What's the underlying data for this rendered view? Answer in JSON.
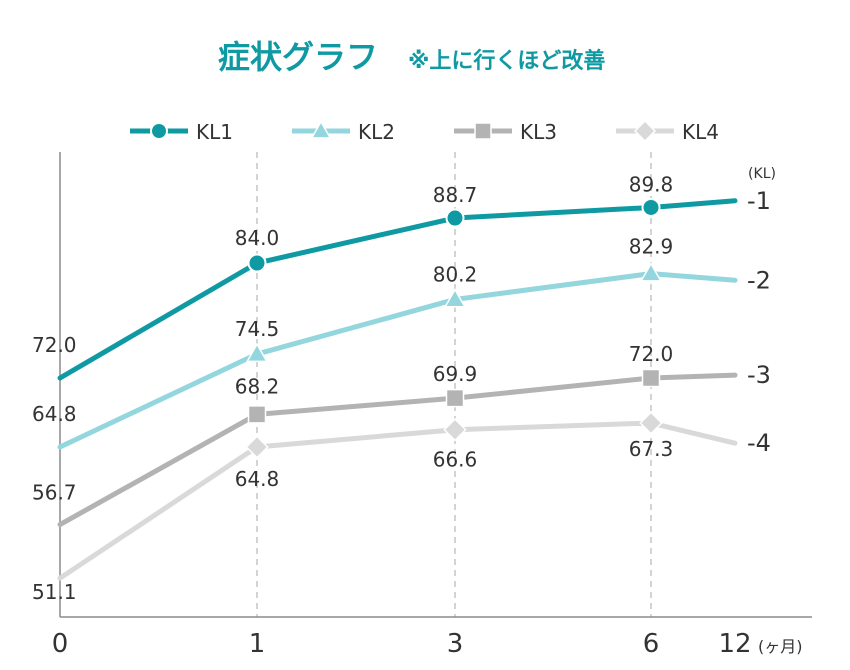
{
  "title": "症状グラフ",
  "subtitle": "※上に行くほど改善",
  "colors": {
    "kl1": "#0f9aa3",
    "kl2": "#94d6de",
    "kl3": "#b3b3b3",
    "kl4": "#d9d9d9",
    "axis": "#8c8c8c",
    "text": "#333333",
    "grid": "#c6c6c6"
  },
  "chart_data": {
    "type": "line",
    "title": "症状グラフ",
    "subtitle": "※上に行くほど改善",
    "x": [
      0,
      1,
      3,
      6,
      12
    ],
    "x_tick_labels": [
      "0",
      "1",
      "3",
      "6",
      "12"
    ],
    "x_unit": "(ヶ月)",
    "right_axis_title": "(KL)",
    "grid": "vertical dashed at 1, 3, 6",
    "legend_position": "top",
    "series": [
      {
        "name": "KL1",
        "marker": "circle",
        "end_label": "-1",
        "values": [
          72.0,
          84.0,
          88.7,
          89.8,
          90.5
        ],
        "labels": [
          "72.0",
          "84.0",
          "88.7",
          "89.8",
          ""
        ]
      },
      {
        "name": "KL2",
        "marker": "triangle",
        "end_label": "-2",
        "values": [
          64.8,
          74.5,
          80.2,
          82.9,
          82.2
        ],
        "labels": [
          "64.8",
          "74.5",
          "80.2",
          "82.9",
          ""
        ]
      },
      {
        "name": "KL3",
        "marker": "square",
        "end_label": "-3",
        "values": [
          56.7,
          68.2,
          69.9,
          72.0,
          72.3
        ],
        "labels": [
          "56.7",
          "68.2",
          "69.9",
          "72.0",
          ""
        ]
      },
      {
        "name": "KL4",
        "marker": "diamond",
        "end_label": "-4",
        "values": [
          51.1,
          64.8,
          66.6,
          67.3,
          65.2
        ],
        "labels": [
          "51.1",
          "64.8",
          "66.6",
          "67.3",
          ""
        ]
      }
    ]
  }
}
